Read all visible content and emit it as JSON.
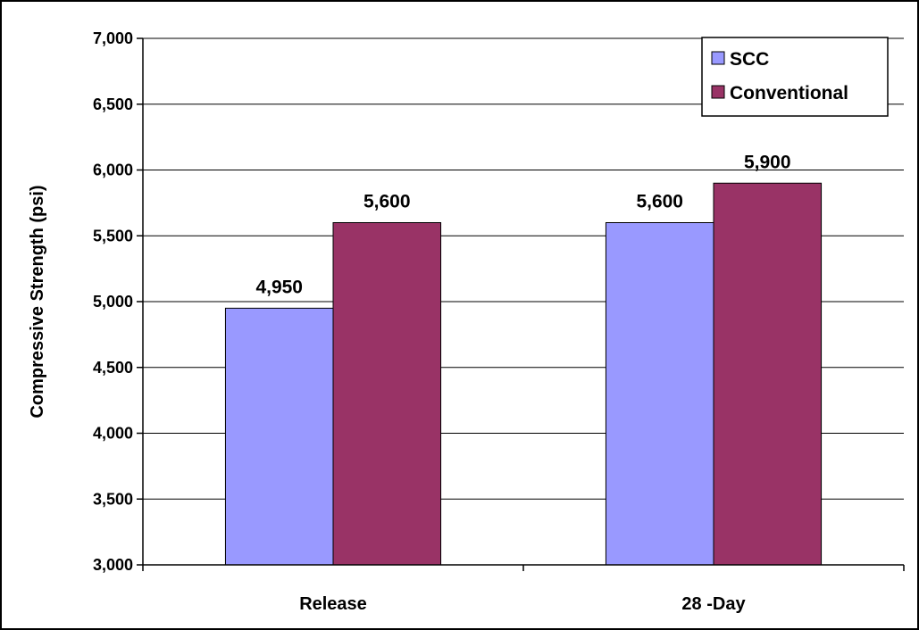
{
  "chart_data": {
    "type": "bar",
    "categories": [
      "Release",
      "28 -Day"
    ],
    "series": [
      {
        "name": "SCC",
        "values": [
          4950,
          5600
        ],
        "color": "#9999ff"
      },
      {
        "name": "Conventional",
        "values": [
          5600,
          5900
        ],
        "color": "#993366"
      }
    ],
    "data_labels": [
      [
        "4,950",
        "5,600"
      ],
      [
        "5,600",
        "5,900"
      ]
    ],
    "ylabel": "Compressive Strength (psi)",
    "xlabel": "",
    "ylim": [
      3000,
      7000
    ],
    "y_ticks": [
      3000,
      3500,
      4000,
      4500,
      5000,
      5500,
      6000,
      6500,
      7000
    ],
    "y_tick_labels": [
      "3,000",
      "3,500",
      "4,000",
      "4,500",
      "5,000",
      "5,500",
      "6,000",
      "6,500",
      "7,000"
    ],
    "grid": true,
    "legend_position": "top-right"
  }
}
